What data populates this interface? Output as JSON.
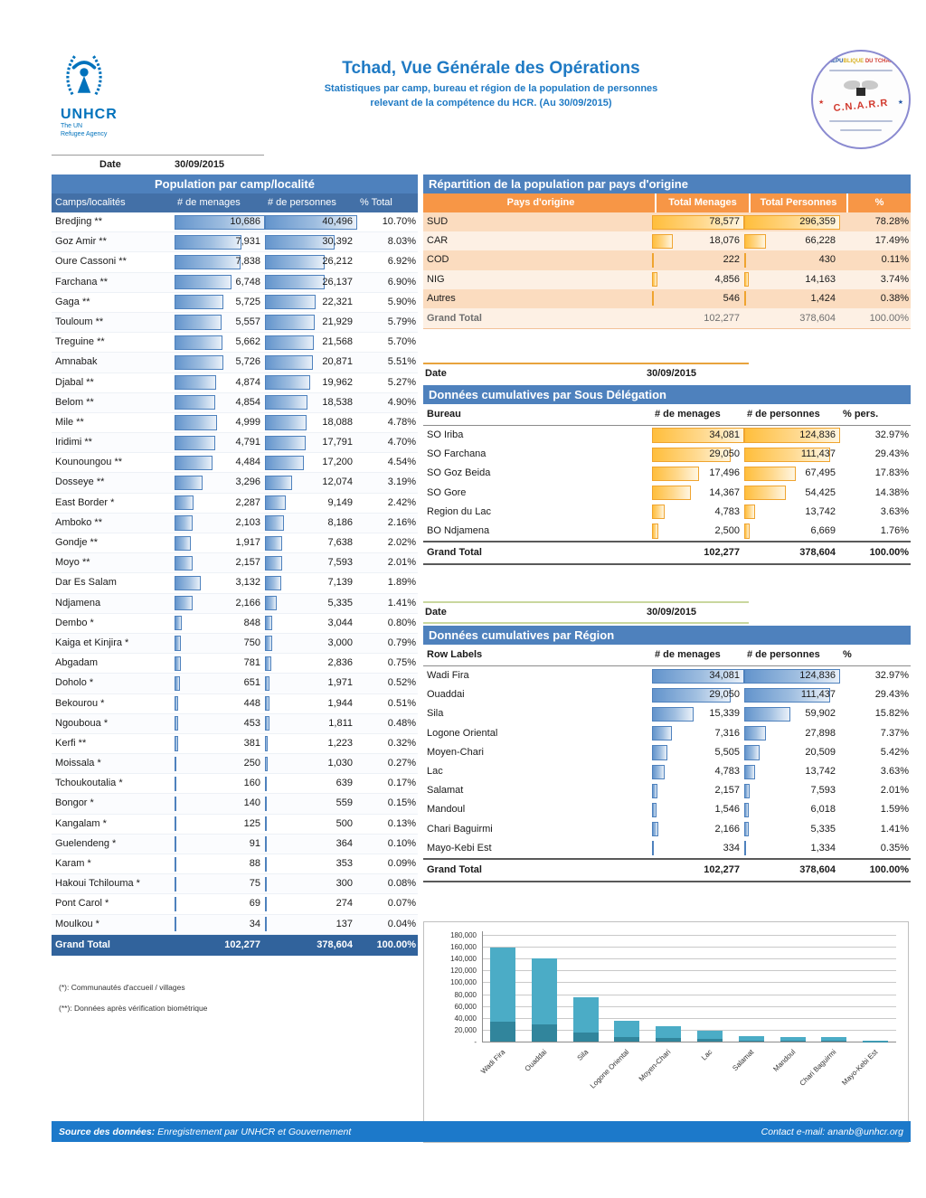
{
  "page": {
    "title": "Tchad, Vue Générale des Opérations",
    "subtitle_line1": "Statistiques par camp, bureau et région de la population de personnes",
    "subtitle_line2": "relevant de la compétence du HCR.  (Au 30/09/2015)",
    "date_label": "Date",
    "date_value": "30/09/2015"
  },
  "logos": {
    "unhcr_name": "UNHCR",
    "unhcr_sub1": "The UN",
    "unhcr_sub2": "Refugee Agency",
    "cnarr_top": "REPUBLIQUE DU TCHAD",
    "cnarr_center": "C.N.A.R.R"
  },
  "camp_table": {
    "title": "Population par camp/localité",
    "columns": [
      "Camps/localités",
      "# de menages",
      "# de personnes",
      "% Total"
    ],
    "rows": [
      {
        "name": "Bredjing **",
        "menages": "10,686",
        "personnes": "40,496",
        "pct": "10.70%"
      },
      {
        "name": "Goz Amir **",
        "menages": "7,931",
        "personnes": "30,392",
        "pct": "8.03%"
      },
      {
        "name": "Oure Cassoni **",
        "menages": "7,838",
        "personnes": "26,212",
        "pct": "6.92%"
      },
      {
        "name": "Farchana **",
        "menages": "6,748",
        "personnes": "26,137",
        "pct": "6.90%"
      },
      {
        "name": "Gaga **",
        "menages": "5,725",
        "personnes": "22,321",
        "pct": "5.90%"
      },
      {
        "name": "Touloum **",
        "menages": "5,557",
        "personnes": "21,929",
        "pct": "5.79%"
      },
      {
        "name": "Treguine **",
        "menages": "5,662",
        "personnes": "21,568",
        "pct": "5.70%"
      },
      {
        "name": "Amnabak",
        "menages": "5,726",
        "personnes": "20,871",
        "pct": "5.51%"
      },
      {
        "name": "Djabal **",
        "menages": "4,874",
        "personnes": "19,962",
        "pct": "5.27%"
      },
      {
        "name": "Belom **",
        "menages": "4,854",
        "personnes": "18,538",
        "pct": "4.90%"
      },
      {
        "name": "Mile **",
        "menages": "4,999",
        "personnes": "18,088",
        "pct": "4.78%"
      },
      {
        "name": "Iridimi **",
        "menages": "4,791",
        "personnes": "17,791",
        "pct": "4.70%"
      },
      {
        "name": "Kounoungou **",
        "menages": "4,484",
        "personnes": "17,200",
        "pct": "4.54%"
      },
      {
        "name": "Dosseye **",
        "menages": "3,296",
        "personnes": "12,074",
        "pct": "3.19%"
      },
      {
        "name": "East Border *",
        "menages": "2,287",
        "personnes": "9,149",
        "pct": "2.42%"
      },
      {
        "name": "Amboko **",
        "menages": "2,103",
        "personnes": "8,186",
        "pct": "2.16%"
      },
      {
        "name": "Gondje **",
        "menages": "1,917",
        "personnes": "7,638",
        "pct": "2.02%"
      },
      {
        "name": "Moyo **",
        "menages": "2,157",
        "personnes": "7,593",
        "pct": "2.01%"
      },
      {
        "name": "Dar Es Salam",
        "menages": "3,132",
        "personnes": "7,139",
        "pct": "1.89%"
      },
      {
        "name": "Ndjamena",
        "menages": "2,166",
        "personnes": "5,335",
        "pct": "1.41%"
      },
      {
        "name": "Dembo *",
        "menages": "848",
        "personnes": "3,044",
        "pct": "0.80%"
      },
      {
        "name": "Kaiga et Kinjira *",
        "menages": "750",
        "personnes": "3,000",
        "pct": "0.79%"
      },
      {
        "name": "Abgadam",
        "menages": "781",
        "personnes": "2,836",
        "pct": "0.75%"
      },
      {
        "name": "Doholo *",
        "menages": "651",
        "personnes": "1,971",
        "pct": "0.52%"
      },
      {
        "name": "Bekourou *",
        "menages": "448",
        "personnes": "1,944",
        "pct": "0.51%"
      },
      {
        "name": "Ngouboua *",
        "menages": "453",
        "personnes": "1,811",
        "pct": "0.48%"
      },
      {
        "name": "Kerfi **",
        "menages": "381",
        "personnes": "1,223",
        "pct": "0.32%"
      },
      {
        "name": "Moissala *",
        "menages": "250",
        "personnes": "1,030",
        "pct": "0.27%"
      },
      {
        "name": "Tchoukoutalia *",
        "menages": "160",
        "personnes": "639",
        "pct": "0.17%"
      },
      {
        "name": "Bongor *",
        "menages": "140",
        "personnes": "559",
        "pct": "0.15%"
      },
      {
        "name": "Kangalam *",
        "menages": "125",
        "personnes": "500",
        "pct": "0.13%"
      },
      {
        "name": "Guelendeng *",
        "menages": "91",
        "personnes": "364",
        "pct": "0.10%"
      },
      {
        "name": "Karam *",
        "menages": "88",
        "personnes": "353",
        "pct": "0.09%"
      },
      {
        "name": "Hakoui Tchilouma *",
        "menages": "75",
        "personnes": "300",
        "pct": "0.08%"
      },
      {
        "name": "Pont Carol *",
        "menages": "69",
        "personnes": "274",
        "pct": "0.07%"
      },
      {
        "name": "Moulkou *",
        "menages": "34",
        "personnes": "137",
        "pct": "0.04%"
      }
    ],
    "grand_total": {
      "name": "Grand Total",
      "menages": "102,277",
      "personnes": "378,604",
      "pct": "100.00%"
    }
  },
  "origin_table": {
    "title": "Répartition de la population par pays d'origine",
    "columns": [
      "Pays d'origine",
      "Total Menages",
      "Total Personnes",
      "%"
    ],
    "rows": [
      {
        "name": "SUD",
        "menages": "78,577",
        "personnes": "296,359",
        "pct": "78.28%"
      },
      {
        "name": "CAR",
        "menages": "18,076",
        "personnes": "66,228",
        "pct": "17.49%"
      },
      {
        "name": "COD",
        "menages": "222",
        "personnes": "430",
        "pct": "0.11%"
      },
      {
        "name": "NIG",
        "menages": "4,856",
        "personnes": "14,163",
        "pct": "3.74%"
      },
      {
        "name": "Autres",
        "menages": "546",
        "personnes": "1,424",
        "pct": "0.38%"
      }
    ],
    "grand_total": {
      "name": "Grand Total",
      "menages": "102,277",
      "personnes": "378,604",
      "pct": "100.00%"
    }
  },
  "bureau_table": {
    "date_label": "Date",
    "date_value": "30/09/2015",
    "title": "Données cumulatives par Sous Délégation",
    "columns": [
      "Bureau",
      "# de menages",
      "# de personnes",
      "% pers."
    ],
    "rows": [
      {
        "name": "SO Iriba",
        "menages": "34,081",
        "personnes": "124,836",
        "pct": "32.97%"
      },
      {
        "name": "SO Farchana",
        "menages": "29,050",
        "personnes": "111,437",
        "pct": "29.43%"
      },
      {
        "name": "SO Goz Beida",
        "menages": "17,496",
        "personnes": "67,495",
        "pct": "17.83%"
      },
      {
        "name": "SO Gore",
        "menages": "14,367",
        "personnes": "54,425",
        "pct": "14.38%"
      },
      {
        "name": "Region du Lac",
        "menages": "4,783",
        "personnes": "13,742",
        "pct": "3.63%"
      },
      {
        "name": "BO Ndjamena",
        "menages": "2,500",
        "personnes": "6,669",
        "pct": "1.76%"
      }
    ],
    "grand_total": {
      "name": "Grand Total",
      "menages": "102,277",
      "personnes": "378,604",
      "pct": "100.00%"
    }
  },
  "region_table": {
    "date_label": "Date",
    "date_value": "30/09/2015",
    "title": "Données cumulatives par Région",
    "columns": [
      "Row Labels",
      "# de menages",
      "# de personnes",
      "%"
    ],
    "rows": [
      {
        "name": "Wadi Fira",
        "menages": "34,081",
        "personnes": "124,836",
        "pct": "32.97%"
      },
      {
        "name": "Ouaddai",
        "menages": "29,050",
        "personnes": "111,437",
        "pct": "29.43%"
      },
      {
        "name": "Sila",
        "menages": "15,339",
        "personnes": "59,902",
        "pct": "15.82%"
      },
      {
        "name": "Logone Oriental",
        "menages": "7,316",
        "personnes": "27,898",
        "pct": "7.37%"
      },
      {
        "name": "Moyen-Chari",
        "menages": "5,505",
        "personnes": "20,509",
        "pct": "5.42%"
      },
      {
        "name": "Lac",
        "menages": "4,783",
        "personnes": "13,742",
        "pct": "3.63%"
      },
      {
        "name": "Salamat",
        "menages": "2,157",
        "personnes": "7,593",
        "pct": "2.01%"
      },
      {
        "name": "Mandoul",
        "menages": "1,546",
        "personnes": "6,018",
        "pct": "1.59%"
      },
      {
        "name": "Chari Baguirmi",
        "menages": "2,166",
        "personnes": "5,335",
        "pct": "1.41%"
      },
      {
        "name": "Mayo-Kebi Est",
        "menages": "334",
        "personnes": "1,334",
        "pct": "0.35%"
      }
    ],
    "grand_total": {
      "name": "Grand Total",
      "menages": "102,277",
      "personnes": "378,604",
      "pct": "100.00%"
    }
  },
  "chart_data": {
    "type": "bar",
    "stacked": true,
    "categories": [
      "Wadi Fira",
      "Ouaddai",
      "Sila",
      "Logone Oriental",
      "Moyen-Chari",
      "Lac",
      "Salamat",
      "Mandoul",
      "Chari Baguirmi",
      "Mayo-Kebi Est"
    ],
    "series": [
      {
        "name": "# de menages",
        "color": "#31859C",
        "values": [
          34081,
          29050,
          15339,
          7316,
          5505,
          4783,
          2157,
          1546,
          2166,
          334
        ]
      },
      {
        "name": "# de personnes",
        "color": "#4BACC6",
        "values": [
          124836,
          111437,
          59902,
          27898,
          20509,
          13742,
          7593,
          6018,
          5335,
          1334
        ]
      },
      {
        "name": "%",
        "color": "#A8D5E2",
        "values": [
          32.97,
          29.43,
          15.82,
          7.37,
          5.42,
          3.63,
          2.01,
          1.59,
          1.41,
          0.35
        ]
      }
    ],
    "title": "",
    "xlabel": "",
    "ylabel": "",
    "ylim": [
      0,
      180000
    ],
    "ytick_step": 20000,
    "ytick_labels": [
      "-",
      "20,000",
      "40,000",
      "60,000",
      "80,000",
      "100,000",
      "120,000",
      "140,000",
      "160,000",
      "180,000"
    ],
    "grid": true,
    "legend_position": "bottom"
  },
  "footnotes": [
    "(*): Communautés d'accueil / villages",
    "(**): Données après vérification biométrique"
  ],
  "footer": {
    "source_label": "Source des données:",
    "source_text": "Enregistrement par UNHCR et Gouvernement",
    "contact": "Contact e-mail: ananb@unhcr.org"
  },
  "colors": {
    "title_blue": "#1F7AC4",
    "table_header_blue": "#4E81BD",
    "column_header_blue": "#4370A7",
    "grand_total_blue": "#31639C",
    "orange_header": "#F79646",
    "row_peach_dark": "#FBDCBF",
    "row_peach_light": "#FDF0E4",
    "bar_blue_border": "#4E81BD",
    "bar_gold_border": "#EFA42F",
    "footer_blue": "#1C79CA",
    "unhcr_blue": "#0072BC"
  }
}
